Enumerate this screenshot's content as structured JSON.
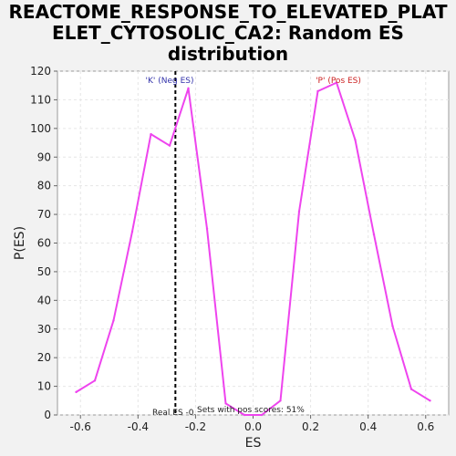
{
  "title_lines": [
    "REACTOME_RESPONSE_TO_ELEVATED_PLAT",
    "ELET_CYTOSOLIC_CA2: Random ES",
    "distribution"
  ],
  "chart_data": {
    "type": "line",
    "xlabel": "ES",
    "ylabel": "P(ES)",
    "xlim": [
      -0.68,
      0.68
    ],
    "ylim": [
      0,
      120
    ],
    "xticks": [
      -0.6,
      -0.4,
      -0.2,
      0.0,
      0.2,
      0.4,
      0.6
    ],
    "xtick_labels": [
      "-0.6",
      "-0.4",
      "-0.2",
      "0.0",
      "0.2",
      "0.4",
      "0.6"
    ],
    "yticks": [
      0,
      10,
      20,
      30,
      40,
      50,
      60,
      70,
      80,
      90,
      100,
      110,
      120
    ],
    "ytick_labels": [
      "0",
      "10",
      "20",
      "30",
      "40",
      "50",
      "60",
      "70",
      "80",
      "90",
      "100",
      "110",
      "120"
    ],
    "grid": true,
    "series_color": "#ee44ee",
    "x": [
      -0.615,
      -0.55,
      -0.485,
      -0.42,
      -0.355,
      -0.29,
      -0.225,
      -0.16,
      -0.095,
      -0.03,
      0.03,
      0.095,
      0.16,
      0.225,
      0.29,
      0.355,
      0.42,
      0.485,
      0.55,
      0.615
    ],
    "y": [
      8,
      12,
      33,
      64,
      98,
      94,
      114,
      65,
      4,
      0,
      0,
      5,
      71,
      113,
      116,
      96,
      63,
      31,
      9,
      5
    ],
    "real_es_x": -0.27,
    "annotations": {
      "neg_label": "'K' (Neg ES)",
      "pos_label": "'P' (Pos ES)",
      "real_es_label": "Real ES -0.",
      "sets_label": "Sets with pos scores: 51%"
    },
    "colors": {
      "neg": "#3333aa",
      "pos": "#cc2222"
    }
  }
}
